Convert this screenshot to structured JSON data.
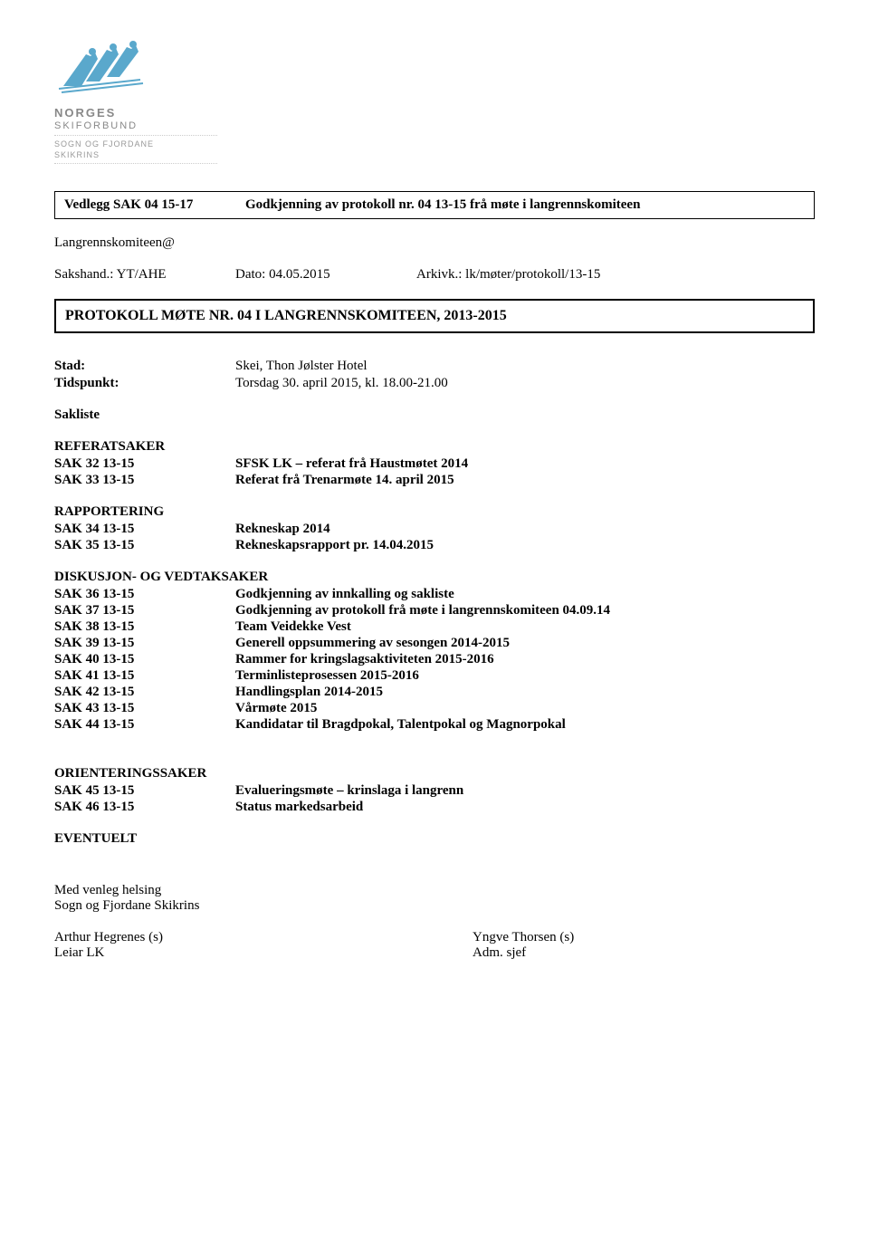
{
  "logo": {
    "org_line1": "NORGES",
    "org_line2": "SKIFORBUND",
    "sub_line1": "SOGN OG FJORDANE",
    "sub_line2": "SKIKRINS",
    "skier_color": "#5aa8cc",
    "text_color": "#888888"
  },
  "header_box": {
    "label": "Vedlegg SAK 04 15-17",
    "value": "Godkjenning av protokoll nr. 04 13-15 frå møte i langrennskomiteen"
  },
  "meta": {
    "recipient": "Langrennskomiteen@",
    "sakshand_label": "Sakshand.: YT/AHE",
    "dato_label": "Dato: 04.05.2015",
    "arkiv_label": "Arkivk.: lk/møter/protokoll/13-15"
  },
  "protokoll_title": "PROTOKOLL  MØTE NR. 04 I LANGRENNSKOMITEEN, 2013-2015",
  "info": {
    "stad_label": "Stad:",
    "stad_value": "Skei, Thon Jølster Hotel",
    "tid_label": "Tidspunkt:",
    "tid_value": "Torsdag 30. april 2015, kl. 18.00-21.00",
    "sakliste_label": "Sakliste"
  },
  "sections": {
    "referat": {
      "heading": "REFERATSAKER",
      "items": [
        {
          "id": "SAK 32 13-15",
          "title": "SFSK LK – referat frå Haustmøtet 2014"
        },
        {
          "id": "SAK 33 13-15",
          "title": "Referat frå Trenarmøte 14. april 2015"
        }
      ]
    },
    "rapportering": {
      "heading": "RAPPORTERING",
      "items": [
        {
          "id": "SAK 34 13-15",
          "title": "Rekneskap 2014"
        },
        {
          "id": "SAK 35 13-15",
          "title": "Rekneskapsrapport pr. 14.04.2015"
        }
      ]
    },
    "diskusjon": {
      "heading": "DISKUSJON- OG VEDTAKSAKER",
      "items": [
        {
          "id": "SAK 36 13-15",
          "title": "Godkjenning av innkalling og sakliste"
        },
        {
          "id": "SAK 37 13-15",
          "title": "Godkjenning av protokoll frå møte i langrennskomiteen 04.09.14"
        },
        {
          "id": "SAK 38 13-15",
          "title": "Team Veidekke Vest"
        },
        {
          "id": "SAK 39 13-15",
          "title": "Generell oppsummering av sesongen 2014-2015"
        },
        {
          "id": "SAK 40 13-15",
          "title": "Rammer for kringslagsaktiviteten 2015-2016"
        },
        {
          "id": "SAK 41 13-15",
          "title": "Terminlisteprosessen 2015-2016"
        },
        {
          "id": "SAK 42 13-15",
          "title": "Handlingsplan 2014-2015"
        },
        {
          "id": "SAK 43 13-15",
          "title": "Vårmøte 2015"
        },
        {
          "id": "SAK 44 13-15",
          "title": "Kandidatar til Bragdpokal, Talentpokal og Magnorpokal"
        }
      ]
    },
    "orientering": {
      "heading": "ORIENTERINGSSAKER",
      "items": [
        {
          "id": "SAK 45 13-15",
          "title": "Evalueringsmøte – krinslaga i langrenn"
        },
        {
          "id": "SAK 46 13-15",
          "title": "Status markedsarbeid"
        }
      ]
    },
    "eventuelt": {
      "heading": "EVENTUELT"
    }
  },
  "closing": {
    "line1": "Med venleg helsing",
    "line2": "Sogn og Fjordane Skikrins",
    "sign1_name": "Arthur Hegrenes (s)",
    "sign1_title": "Leiar LK",
    "sign2_name": "Yngve Thorsen (s)",
    "sign2_title": "Adm. sjef"
  }
}
